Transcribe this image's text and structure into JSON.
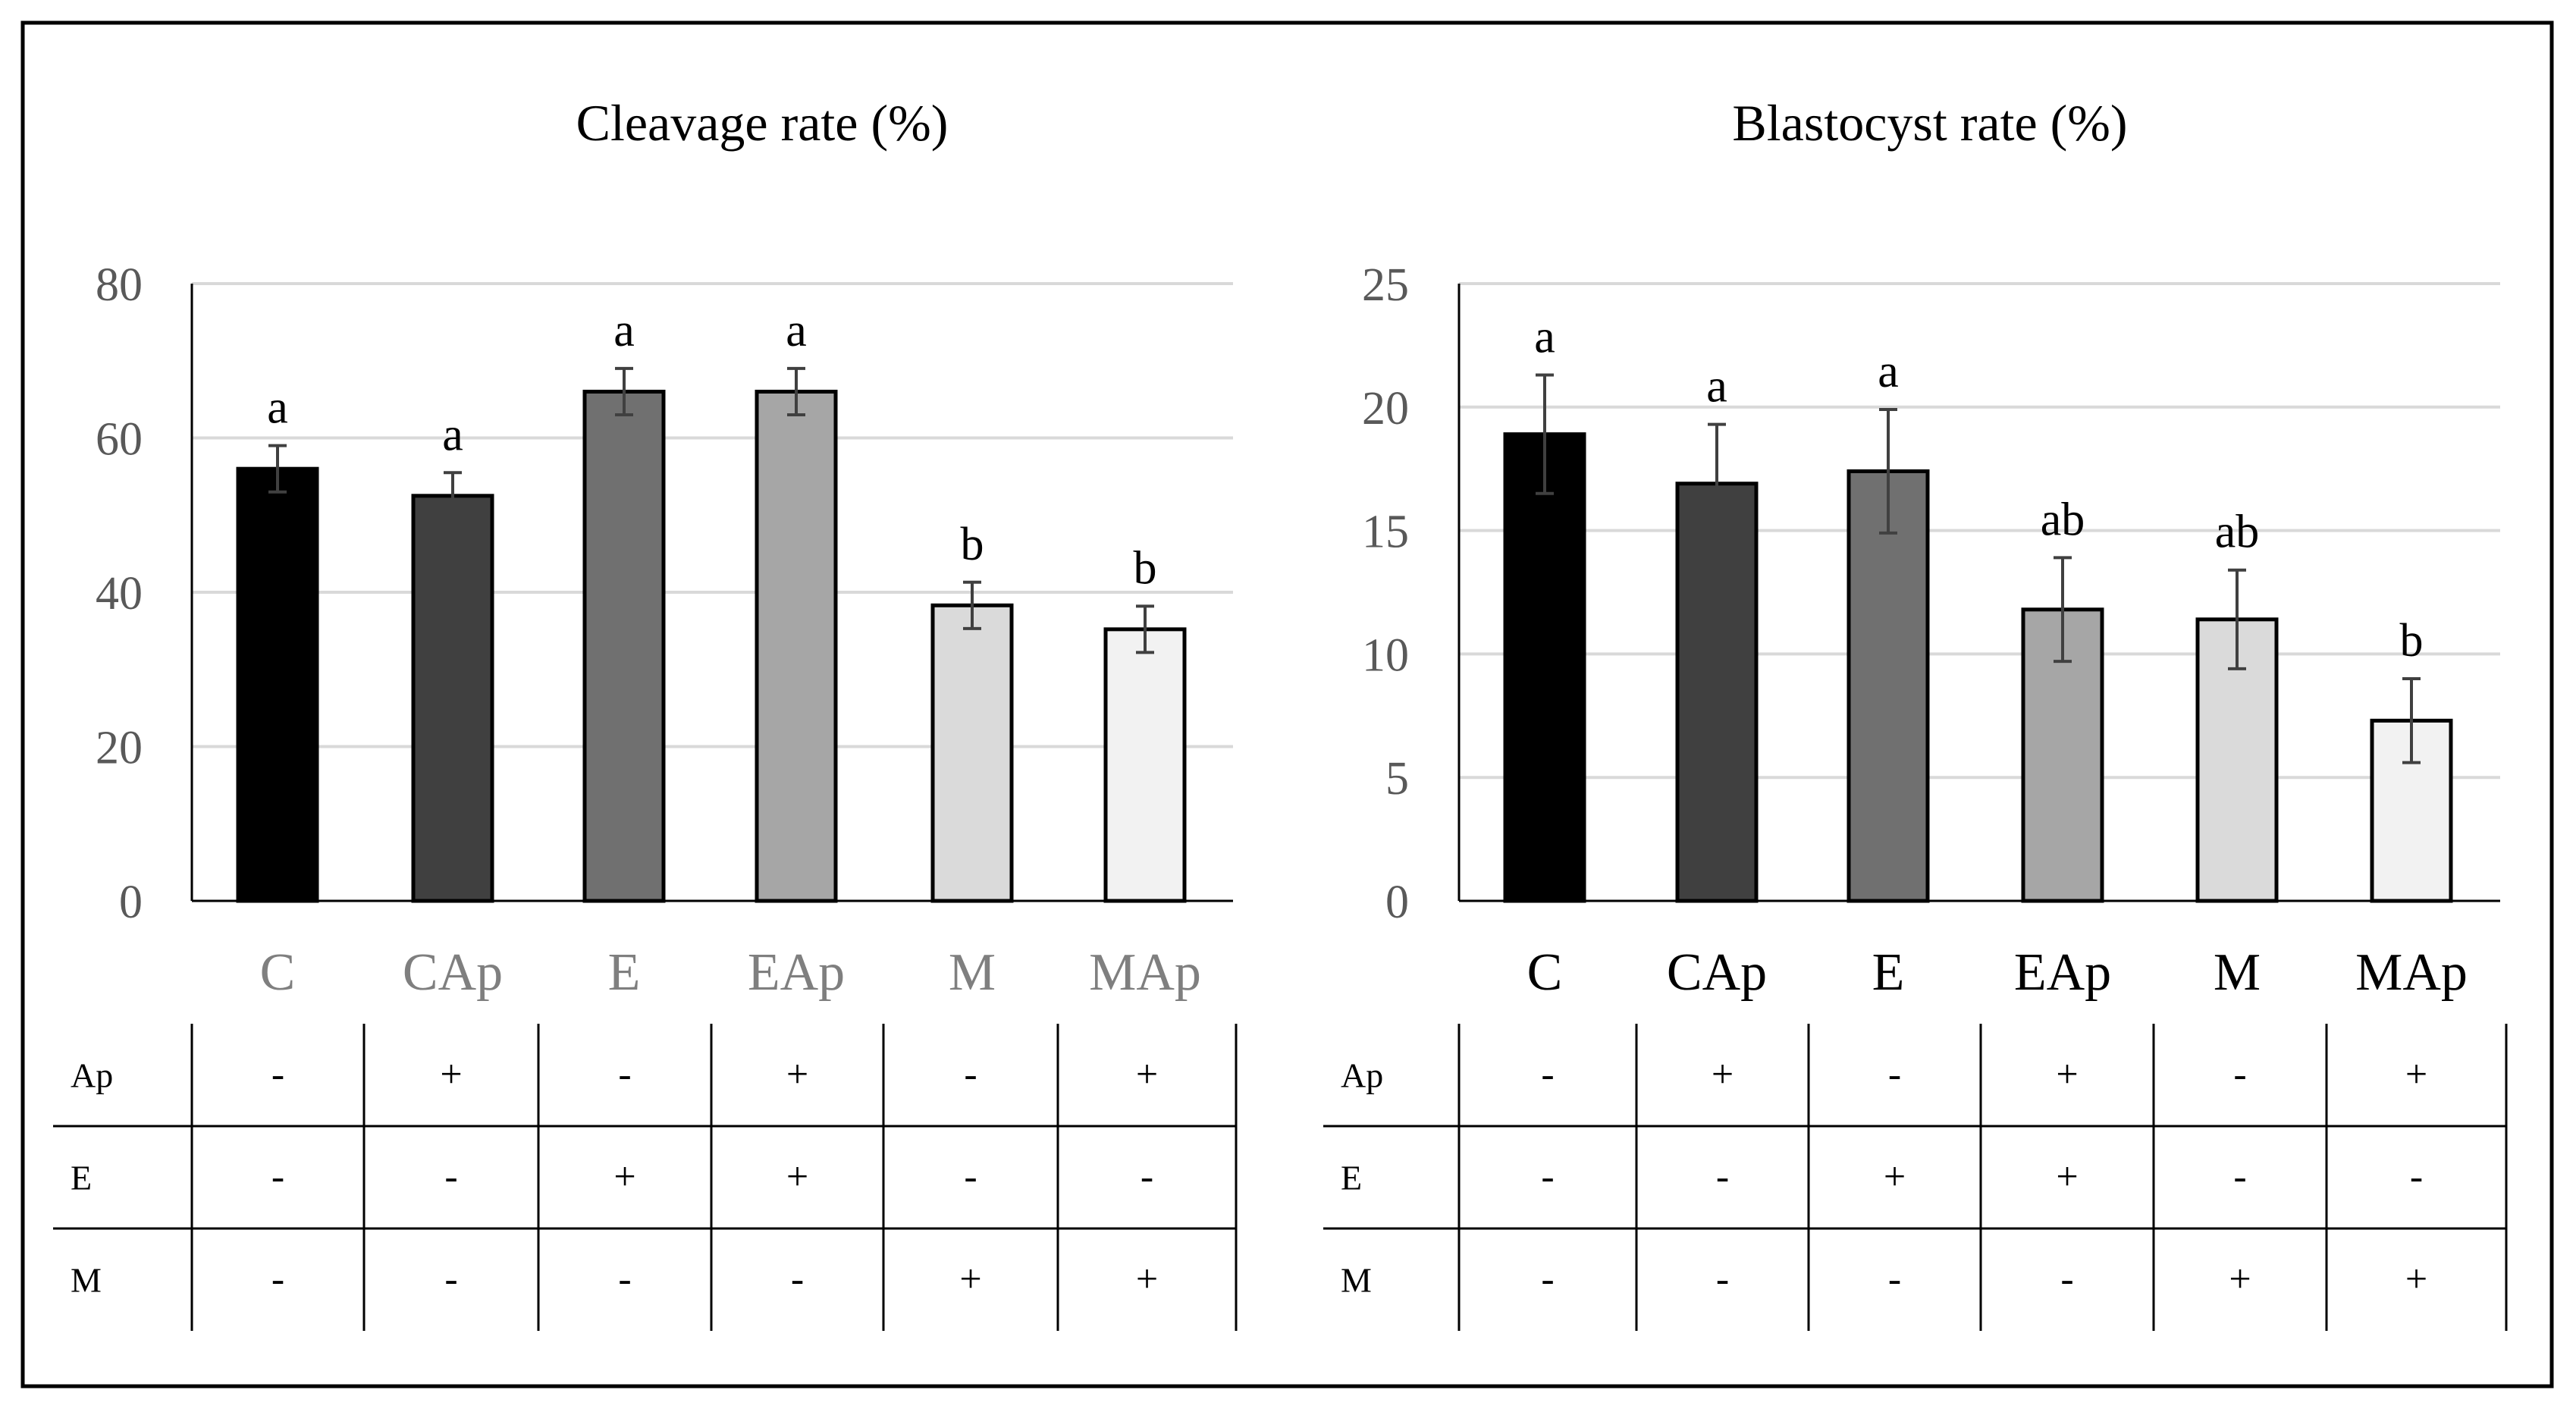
{
  "chart_data": [
    {
      "type": "bar",
      "title": "Cleavage rate (%)",
      "categories": [
        "C",
        "CAp",
        "E",
        "EAp",
        "M",
        "MAp"
      ],
      "values": [
        56,
        52.5,
        66,
        66,
        38.3,
        35.2
      ],
      "errors": [
        3,
        3,
        3,
        3,
        3,
        3
      ],
      "significance": [
        "a",
        "a",
        "a",
        "a",
        "b",
        "b"
      ],
      "colors": [
        "#000000",
        "#404040",
        "#707070",
        "#a6a6a6",
        "#dadada",
        "#f2f2f2"
      ],
      "ylim": [
        0,
        80
      ],
      "yticks": [
        0,
        20,
        40,
        60,
        80
      ],
      "grid": true,
      "xlabel": "",
      "ylabel": ""
    },
    {
      "type": "bar",
      "title": "Blastocyst rate (%)",
      "categories": [
        "C",
        "CAp",
        "E",
        "EAp",
        "M",
        "MAp"
      ],
      "values": [
        18.9,
        16.9,
        17.4,
        11.8,
        11.4,
        7.3
      ],
      "errors": [
        2.4,
        2.4,
        2.5,
        2.1,
        2.0,
        1.7
      ],
      "significance": [
        "a",
        "a",
        "a",
        "ab",
        "ab",
        "b"
      ],
      "colors": [
        "#000000",
        "#404040",
        "#707070",
        "#a6a6a6",
        "#dadada",
        "#f2f2f2"
      ],
      "ylim": [
        0,
        25
      ],
      "yticks": [
        0,
        5,
        10,
        15,
        20,
        25
      ],
      "grid": true,
      "xlabel": "",
      "ylabel": ""
    }
  ],
  "tables": [
    {
      "rows": [
        {
          "label": "Ap",
          "signs": [
            "-",
            "+",
            "-",
            "+",
            "-",
            "+"
          ]
        },
        {
          "label": "E",
          "signs": [
            "-",
            "-",
            "+",
            "+",
            "-",
            "-"
          ]
        },
        {
          "label": "M",
          "signs": [
            "-",
            "-",
            "-",
            "-",
            "+",
            "+"
          ]
        }
      ]
    },
    {
      "rows": [
        {
          "label": "Ap",
          "signs": [
            "-",
            "+",
            "-",
            "+",
            "-",
            "+"
          ]
        },
        {
          "label": "E",
          "signs": [
            "-",
            "-",
            "+",
            "+",
            "-",
            "-"
          ]
        },
        {
          "label": "M",
          "signs": [
            "-",
            "-",
            "-",
            "-",
            "+",
            "+"
          ]
        }
      ]
    }
  ],
  "style": {
    "left_xtick_color": "#7f7f7f",
    "right_xtick_color": "#000000",
    "grid_color": "#d9d9d9",
    "axis_color": "#000000",
    "errorbar_color": "#404040"
  }
}
